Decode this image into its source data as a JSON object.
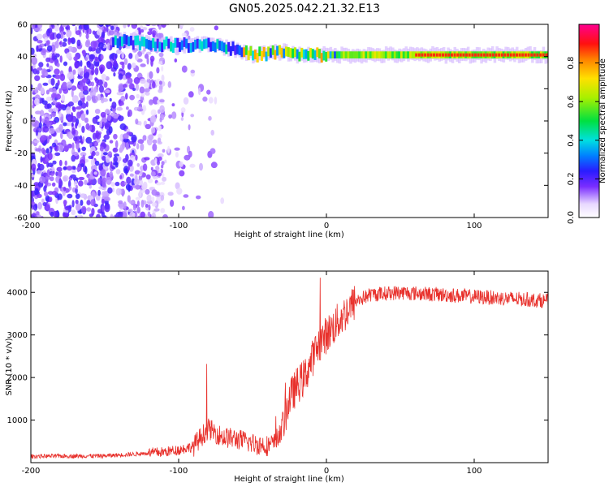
{
  "title": "GN05.2025.042.21.32.E13",
  "chart_data": [
    {
      "type": "heatmap",
      "name": "spectrogram",
      "xlabel": "Height of straight line (km)",
      "ylabel": "Frequency (Hz)",
      "xlim": [
        -200,
        150
      ],
      "ylim": [
        -60,
        60
      ],
      "x_ticks": [
        -200,
        -100,
        0,
        100
      ],
      "y_ticks": [
        -60,
        -40,
        -20,
        0,
        20,
        40,
        60
      ],
      "colorbar": {
        "label": "Normalized spectral amplitude",
        "range": [
          0,
          1
        ],
        "ticks": [
          0.0,
          0.2,
          0.4,
          0.6,
          0.8
        ]
      },
      "dominant_line": {
        "description_points": [
          [
            -140,
            50
          ],
          [
            -120,
            48
          ],
          [
            -100,
            47
          ],
          [
            -80,
            48
          ],
          [
            -70,
            46
          ],
          [
            -60,
            44
          ],
          [
            -50,
            41
          ],
          [
            -40,
            42
          ],
          [
            -30,
            43
          ],
          [
            -20,
            41
          ],
          [
            -10,
            41
          ],
          [
            0,
            41
          ],
          [
            20,
            41
          ],
          [
            50,
            41
          ],
          [
            80,
            41
          ],
          [
            100,
            41
          ],
          [
            150,
            41
          ]
        ]
      }
    },
    {
      "type": "line",
      "name": "snr",
      "xlabel": "Height of straight line (km)",
      "ylabel": "SNR (10 * v/v)",
      "xlim": [
        -200,
        150
      ],
      "ylim": [
        0,
        4500
      ],
      "x_ticks": [
        -200,
        -100,
        0,
        100
      ],
      "y_ticks": [
        1000,
        2000,
        3000,
        4000
      ],
      "color": "#e8312c",
      "trend": [
        [
          -200,
          150
        ],
        [
          -150,
          160
        ],
        [
          -130,
          200
        ],
        [
          -110,
          250
        ],
        [
          -100,
          300
        ],
        [
          -90,
          380
        ],
        [
          -85,
          600
        ],
        [
          -80,
          800
        ],
        [
          -75,
          700
        ],
        [
          -70,
          600
        ],
        [
          -60,
          550
        ],
        [
          -50,
          450
        ],
        [
          -40,
          400
        ],
        [
          -35,
          450
        ],
        [
          -30,
          800
        ],
        [
          -25,
          1500
        ],
        [
          -20,
          1800
        ],
        [
          -15,
          2000
        ],
        [
          -10,
          2400
        ],
        [
          -5,
          2800
        ],
        [
          0,
          3000
        ],
        [
          5,
          3200
        ],
        [
          10,
          3400
        ],
        [
          15,
          3600
        ],
        [
          20,
          3800
        ],
        [
          30,
          3950
        ],
        [
          50,
          4000
        ],
        [
          75,
          3950
        ],
        [
          100,
          3900
        ],
        [
          125,
          3850
        ],
        [
          150,
          3800
        ]
      ]
    }
  ]
}
